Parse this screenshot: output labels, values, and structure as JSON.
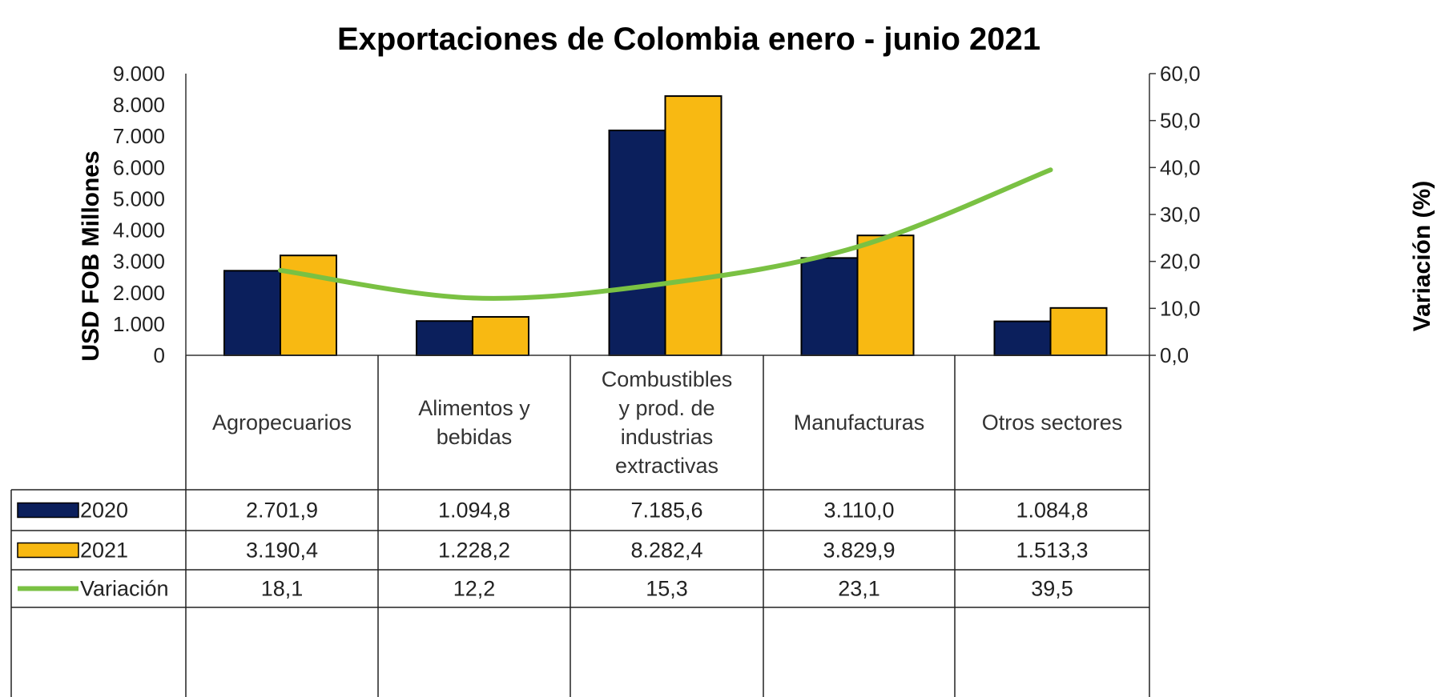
{
  "chart_data": {
    "type": "bar",
    "title": "Exportaciones de Colombia enero - junio 2021",
    "ylabel": "USD FOB Millones",
    "y2label": "Variación (%)",
    "ylim": [
      0,
      9000
    ],
    "y2lim": [
      0,
      60
    ],
    "yticks": [
      "9.000",
      "8.000",
      "7.000",
      "6.000",
      "5.000",
      "4.000",
      "3.000",
      "2.000",
      "1.000",
      "0"
    ],
    "y2ticks": [
      "60,0",
      "50,0",
      "40,0",
      "30,0",
      "20,0",
      "10,0",
      "0,0"
    ],
    "categories": [
      [
        "Agropecuarios"
      ],
      [
        "Alimentos y",
        "bebidas"
      ],
      [
        "Combustibles",
        "y prod. de",
        "industrias",
        "extractivas"
      ],
      [
        "Manufacturas"
      ],
      [
        "Otros sectores"
      ]
    ],
    "series": [
      {
        "name": "2020",
        "type": "bar",
        "color": "#0b1f5c",
        "values": [
          2701.9,
          1094.8,
          7185.6,
          3110.0,
          1084.8
        ],
        "labels": [
          "2.701,9",
          "1.094,8",
          "7.185,6",
          "3.110,0",
          "1.084,8"
        ]
      },
      {
        "name": "2021",
        "type": "bar",
        "color": "#f8b912",
        "values": [
          3190.4,
          1228.2,
          8282.4,
          3829.9,
          1513.3
        ],
        "labels": [
          "3.190,4",
          "1.228,2",
          "8.282,4",
          "3.829,9",
          "1.513,3"
        ]
      },
      {
        "name": "Variación",
        "type": "line",
        "axis": "right",
        "color": "#7ac143",
        "values": [
          18.1,
          12.2,
          15.3,
          23.1,
          39.5
        ],
        "labels": [
          "18,1",
          "12,2",
          "15,3",
          "23,1",
          "39,5"
        ]
      }
    ],
    "grid": false,
    "legend": "data-table"
  }
}
